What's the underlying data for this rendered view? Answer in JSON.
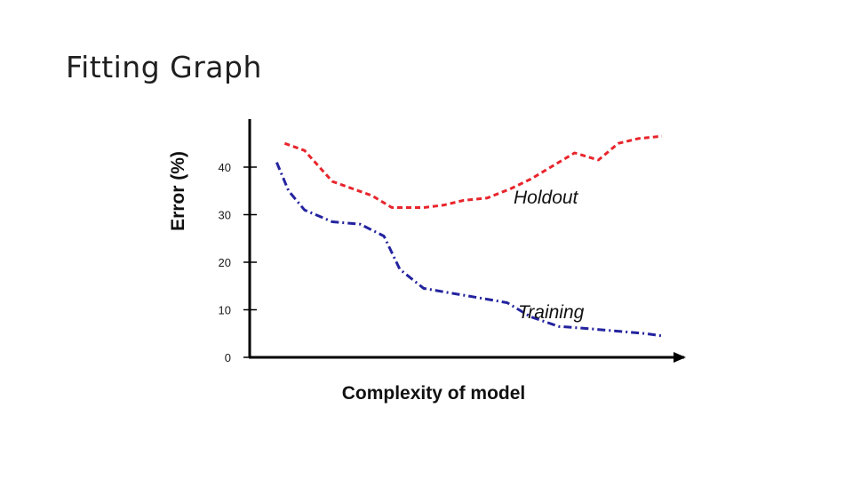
{
  "slide": {
    "title": "Fitting Graph"
  },
  "chart_data": {
    "type": "line",
    "title": "",
    "xlabel": "Complexity of model",
    "ylabel": "Error (%)",
    "ylim": [
      0,
      50
    ],
    "yticks": [
      0,
      10,
      20,
      30,
      40
    ],
    "xlim": [
      0,
      100
    ],
    "x_ticks_shown": false,
    "grid": false,
    "legend": "none (inline series labels)",
    "series": [
      {
        "name": "Holdout",
        "color": "#e8242b",
        "dash": "dashed",
        "x": [
          5,
          10,
          17,
          22,
          27,
          32,
          40,
          45,
          50,
          56,
          62,
          67,
          72,
          78,
          84,
          89,
          94,
          100
        ],
        "y": [
          45,
          43.5,
          37,
          35.5,
          34,
          31.5,
          31.5,
          32,
          33,
          33.5,
          35.5,
          37.5,
          40,
          43,
          41.5,
          45,
          46,
          46.5
        ]
      },
      {
        "name": "Training",
        "color": "#23239f",
        "dash": "dash-dot",
        "x": [
          3,
          6,
          10,
          17,
          24,
          30,
          34,
          40,
          47,
          54,
          61,
          67,
          74,
          82,
          89,
          96,
          100
        ],
        "y": [
          41,
          35,
          31,
          28.5,
          28,
          25.5,
          18.5,
          14.5,
          13.5,
          12.5,
          11.5,
          8.5,
          6.5,
          6,
          5.5,
          5,
          4.5
        ]
      }
    ]
  }
}
